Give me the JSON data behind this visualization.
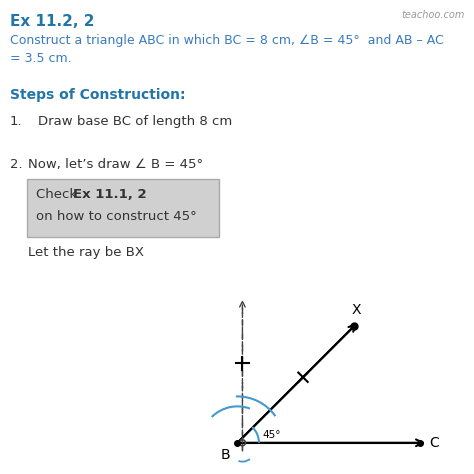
{
  "title": "Ex 11.2, 2",
  "title_color": "#2175a9",
  "watermark": "teachoo.com",
  "problem_text_line1": "Construct a triangle ABC in which BC = 8 cm, ∠B = 45°  and AB – AC",
  "problem_text_line2": "= 3.5 cm.",
  "problem_color": "#3a7bbf",
  "steps_heading": "Steps of Construction:",
  "steps_heading_color": "#2175a9",
  "step1_num": "1.",
  "step1_text": "Draw base BC of length 8 cm",
  "step2_num": "2.",
  "step2_text": "Now, let’s draw ∠ B = 45°",
  "box_check": "Check ",
  "box_bold": "Ex 11.1, 2",
  "box_line2": "on how to construct 45°",
  "box_text3": "Let the ray be BX",
  "box_bg": "#d0d0d0",
  "box_edge": "#aaaaaa",
  "angle_label": "45°",
  "label_B": "B",
  "label_C": "C",
  "label_X": "X",
  "bg_color": "#ffffff",
  "line_color": "#000000",
  "arc_color": "#4499cc",
  "dashed_color": "#444444",
  "text_color": "#333333"
}
